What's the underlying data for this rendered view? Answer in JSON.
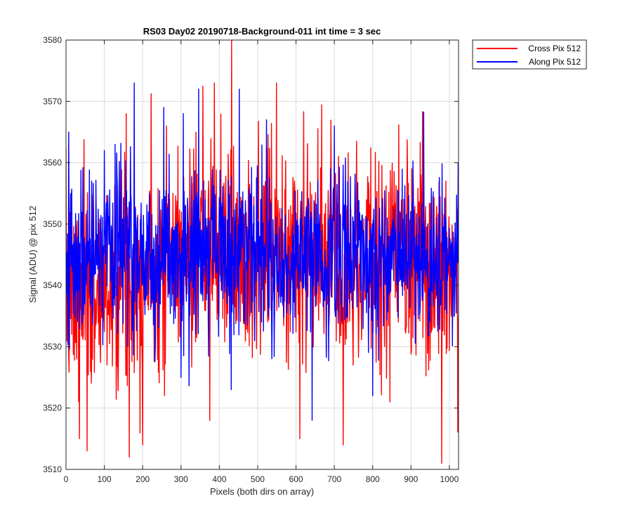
{
  "chart_data": {
    "type": "line",
    "title": "RS03 Day02 20190718-Background-011 int time = 3 sec",
    "xlabel": "Pixels (both dirs on array)",
    "ylabel": "Signal (ADU) @ pix 512",
    "xlim": [
      0,
      1024
    ],
    "ylim": [
      3510,
      3580
    ],
    "x_ticks": [
      0,
      100,
      200,
      300,
      400,
      500,
      600,
      700,
      800,
      900,
      1000
    ],
    "y_ticks": [
      3510,
      3520,
      3530,
      3540,
      3550,
      3560,
      3570,
      3580
    ],
    "grid": true,
    "legend_position": "outside-top-right",
    "series": [
      {
        "name": "Cross Pix 512",
        "color": "#ff0000",
        "n_points": 1024,
        "x_step": 1,
        "baseline": [
          [
            0,
            3539
          ],
          [
            50,
            3538
          ],
          [
            100,
            3540
          ],
          [
            150,
            3541
          ],
          [
            200,
            3543
          ],
          [
            250,
            3544
          ],
          [
            300,
            3545
          ],
          [
            350,
            3545
          ],
          [
            400,
            3546
          ],
          [
            450,
            3546
          ],
          [
            500,
            3546
          ],
          [
            550,
            3545
          ],
          [
            600,
            3545
          ],
          [
            650,
            3545
          ],
          [
            700,
            3545
          ],
          [
            750,
            3544
          ],
          [
            800,
            3544
          ],
          [
            850,
            3544
          ],
          [
            900,
            3543
          ],
          [
            950,
            3543
          ],
          [
            1023,
            3543
          ]
        ],
        "noise_sigma": 8.5,
        "seed": 7,
        "features": [
          [
            432,
            3580
          ],
          [
            549,
            3573
          ],
          [
            387,
            3573
          ],
          [
            157,
            3568
          ],
          [
            262,
            3566
          ],
          [
            55,
            3513
          ],
          [
            165,
            3512
          ],
          [
            980,
            3511
          ],
          [
            610,
            3515
          ],
          [
            35,
            3515
          ],
          [
            200,
            3514
          ],
          [
            375,
            3518
          ],
          [
            845,
            3521
          ]
        ]
      },
      {
        "name": "Along Pix 512",
        "color": "#0000ff",
        "n_points": 1024,
        "x_step": 1,
        "baseline": [
          [
            0,
            3545
          ],
          [
            50,
            3544
          ],
          [
            100,
            3545
          ],
          [
            150,
            3545
          ],
          [
            200,
            3545
          ],
          [
            250,
            3545
          ],
          [
            300,
            3545
          ],
          [
            350,
            3545
          ],
          [
            400,
            3545
          ],
          [
            450,
            3545
          ],
          [
            500,
            3545
          ],
          [
            550,
            3545
          ],
          [
            600,
            3545
          ],
          [
            650,
            3545
          ],
          [
            700,
            3545
          ],
          [
            750,
            3545
          ],
          [
            800,
            3545
          ],
          [
            850,
            3545
          ],
          [
            900,
            3545
          ],
          [
            950,
            3545
          ],
          [
            1023,
            3545
          ]
        ],
        "noise_sigma": 7,
        "seed": 19,
        "features": [
          [
            178,
            3573
          ],
          [
            346,
            3572
          ],
          [
            452,
            3572
          ],
          [
            306,
            3568
          ],
          [
            255,
            3569
          ],
          [
            128,
            3563
          ],
          [
            523,
            3567
          ],
          [
            700,
            3566
          ],
          [
            7,
            3565
          ],
          [
            642,
            3518
          ],
          [
            431,
            3523
          ],
          [
            800,
            3522
          ],
          [
            300,
            3525
          ],
          [
            1023,
            3560
          ]
        ]
      }
    ]
  }
}
